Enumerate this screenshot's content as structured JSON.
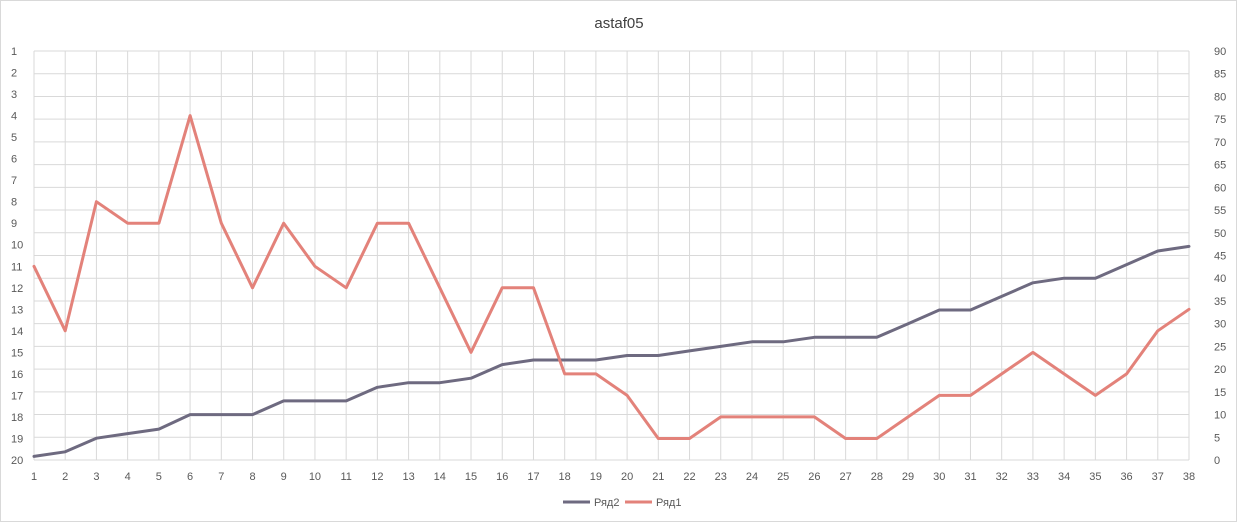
{
  "chart_data": {
    "type": "line",
    "title": "astaf05",
    "categories": [
      "1",
      "2",
      "3",
      "4",
      "5",
      "6",
      "7",
      "8",
      "9",
      "10",
      "11",
      "12",
      "13",
      "14",
      "15",
      "16",
      "17",
      "18",
      "19",
      "20",
      "21",
      "22",
      "23",
      "24",
      "25",
      "26",
      "27",
      "28",
      "29",
      "30",
      "31",
      "32",
      "33",
      "34",
      "35",
      "36",
      "37",
      "38"
    ],
    "left_axis": {
      "ticks": [
        "1",
        "2",
        "3",
        "4",
        "5",
        "6",
        "7",
        "8",
        "9",
        "10",
        "11",
        "12",
        "13",
        "14",
        "15",
        "16",
        "17",
        "18",
        "19",
        "20"
      ],
      "range": [
        1,
        20
      ],
      "reversed": true
    },
    "right_axis": {
      "ticks": [
        "0",
        "5",
        "10",
        "15",
        "20",
        "25",
        "30",
        "35",
        "40",
        "45",
        "50",
        "55",
        "60",
        "65",
        "70",
        "75",
        "80",
        "85",
        "90"
      ],
      "range": [
        0,
        90
      ]
    },
    "grid": true,
    "legend_position": "bottom",
    "series": [
      {
        "name": "Ряд2",
        "color": "#6e6a80",
        "axis": "right",
        "values": [
          0.8,
          1.8,
          4.8,
          5.8,
          6.8,
          10,
          10,
          10,
          13,
          13,
          13,
          16,
          17,
          17,
          18,
          21,
          22,
          22,
          22,
          23,
          23,
          24,
          25,
          26,
          26,
          27,
          27,
          27,
          30,
          33,
          33,
          36,
          39,
          40,
          40,
          43,
          46,
          47
        ]
      },
      {
        "name": "Ряд1",
        "color": "#e3827a",
        "axis": "left",
        "values": [
          11,
          14,
          8,
          9,
          9,
          4,
          9,
          12,
          9,
          11,
          12,
          9,
          9,
          12,
          15,
          12,
          12,
          16,
          16,
          17,
          19,
          19,
          18,
          18,
          18,
          18,
          19,
          19,
          18,
          17,
          17,
          16,
          15,
          16,
          17,
          16,
          14,
          13
        ]
      }
    ]
  }
}
